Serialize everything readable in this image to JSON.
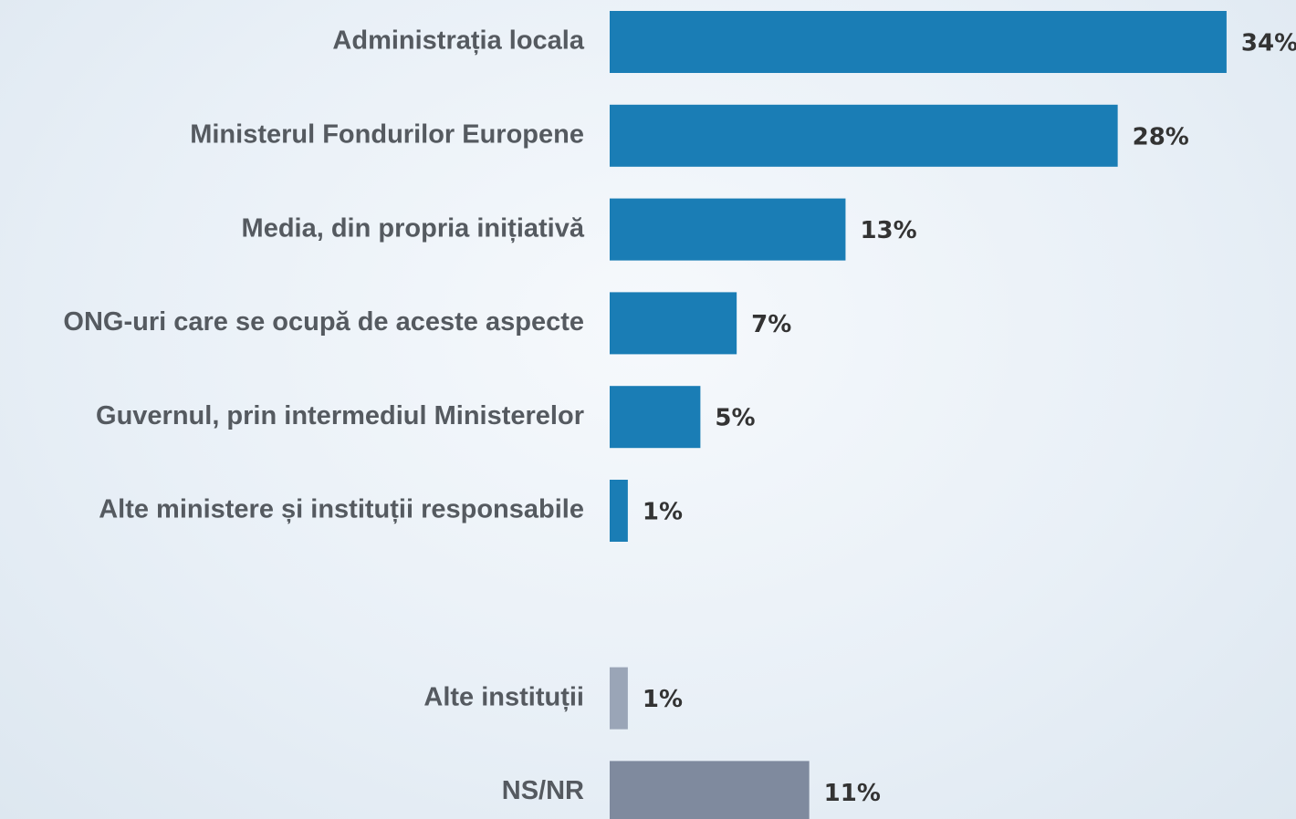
{
  "chart_data": {
    "type": "bar",
    "orientation": "horizontal",
    "categories": [
      "Administrația locala",
      "Ministerul Fondurilor Europene",
      "Media, din propria inițiativă",
      "ONG-uri care se ocupă de aceste aspecte",
      "Guvernul, prin intermediul Ministerelor",
      "Alte ministere și instituții responsabile",
      null,
      "Alte instituții",
      "NS/NR"
    ],
    "values": [
      34,
      28,
      13,
      7,
      5,
      1,
      null,
      1,
      11
    ],
    "value_labels": [
      "34%",
      "28%",
      "13%",
      "7%",
      "5%",
      "1%",
      null,
      "1%",
      "11%"
    ],
    "colors": [
      "#1a7db5",
      "#1a7db5",
      "#1a7db5",
      "#1a7db5",
      "#1a7db5",
      "#1a7db5",
      null,
      "#9aa5b7",
      "#7f8a9e"
    ]
  }
}
